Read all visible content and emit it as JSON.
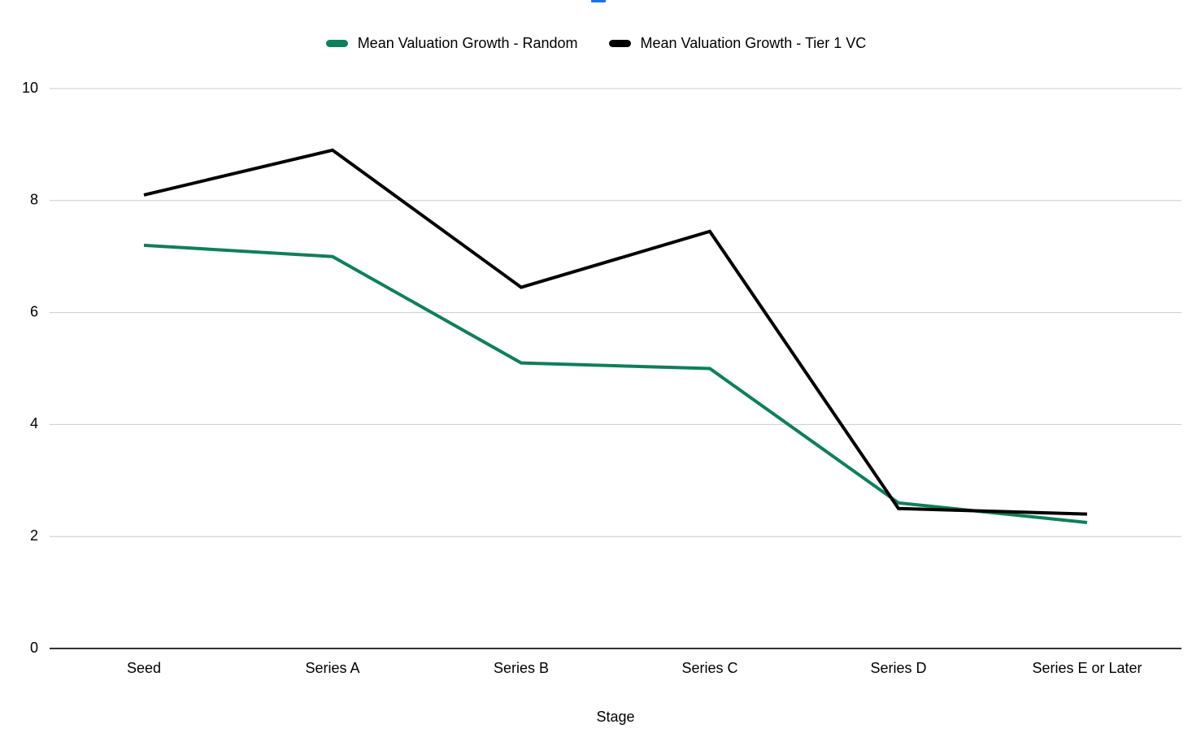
{
  "page": {
    "background_color": "#ffffff",
    "blue_indicator_color": "#1a73e8"
  },
  "chart_data": {
    "type": "line",
    "title": "",
    "xlabel": "Stage",
    "ylabel": "",
    "categories": [
      "Seed",
      "Series A",
      "Series B",
      "Series C",
      "Series D",
      "Series E or Later"
    ],
    "series": [
      {
        "name": "Mean Valuation Growth - Random",
        "color": "#0d8057",
        "values": [
          7.2,
          7.0,
          5.1,
          5.0,
          2.6,
          2.25
        ]
      },
      {
        "name": "Mean Valuation Growth - Tier 1 VC",
        "color": "#000000",
        "values": [
          8.1,
          8.9,
          6.45,
          7.45,
          2.5,
          2.4
        ]
      }
    ],
    "ylim": [
      0,
      10
    ],
    "yticks": [
      0,
      2,
      4,
      6,
      8,
      10
    ],
    "grid": true,
    "gridline_color": "#cccccc",
    "axis_line_color": "#333333",
    "legend_position": "top"
  }
}
